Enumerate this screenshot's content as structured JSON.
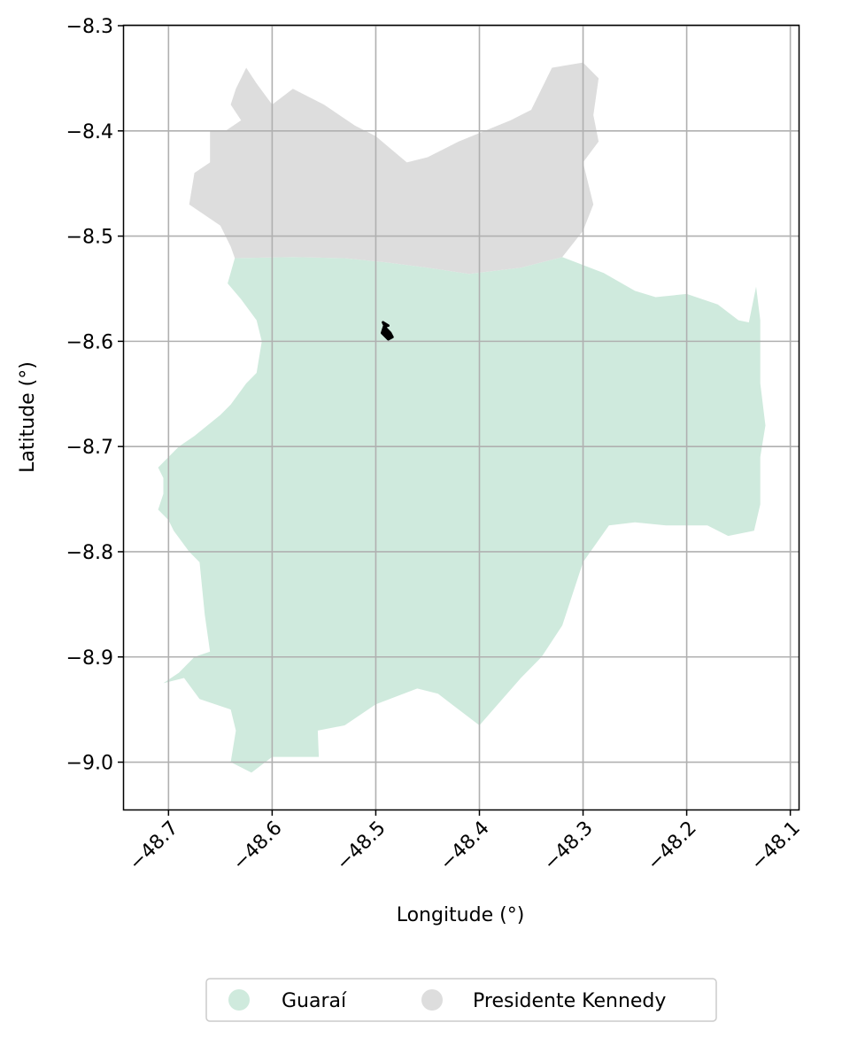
{
  "chart_data": {
    "type": "map",
    "xlabel": "Longitude (°)",
    "ylabel": "Latitude (°)",
    "xlim": [
      -48.743,
      -48.092
    ],
    "ylim": [
      -9.045,
      -8.3
    ],
    "x_ticks": [
      -48.7,
      -48.6,
      -48.5,
      -48.4,
      -48.3,
      -48.2,
      -48.1
    ],
    "x_tick_labels": [
      "−48.7",
      "−48.6",
      "−48.5",
      "−48.4",
      "−48.3",
      "−48.2",
      "−48.1"
    ],
    "y_ticks": [
      -8.3,
      -8.4,
      -8.5,
      -8.6,
      -8.7,
      -8.8,
      -8.9,
      -9.0
    ],
    "y_tick_labels": [
      "−8.3",
      "−8.4",
      "−8.5",
      "−8.6",
      "−8.7",
      "−8.8",
      "−8.9",
      "−9.0"
    ],
    "grid": true,
    "legend_position": "bottom-center",
    "regions": [
      {
        "name": "Guaraí",
        "color": "#cfeadd",
        "outline": [
          [
            -48.636,
            -8.521
          ],
          [
            -48.58,
            -8.52
          ],
          [
            -48.53,
            -8.521
          ],
          [
            -48.49,
            -8.525
          ],
          [
            -48.45,
            -8.53
          ],
          [
            -48.41,
            -8.536
          ],
          [
            -48.36,
            -8.53
          ],
          [
            -48.34,
            -8.525
          ],
          [
            -48.32,
            -8.52
          ],
          [
            -48.28,
            -8.535
          ],
          [
            -48.25,
            -8.552
          ],
          [
            -48.23,
            -8.558
          ],
          [
            -48.2,
            -8.555
          ],
          [
            -48.17,
            -8.565
          ],
          [
            -48.15,
            -8.58
          ],
          [
            -48.14,
            -8.582
          ],
          [
            -48.133,
            -8.548
          ],
          [
            -48.129,
            -8.58
          ],
          [
            -48.129,
            -8.64
          ],
          [
            -48.124,
            -8.68
          ],
          [
            -48.129,
            -8.71
          ],
          [
            -48.129,
            -8.755
          ],
          [
            -48.135,
            -8.78
          ],
          [
            -48.16,
            -8.785
          ],
          [
            -48.18,
            -8.775
          ],
          [
            -48.22,
            -8.775
          ],
          [
            -48.25,
            -8.772
          ],
          [
            -48.275,
            -8.775
          ],
          [
            -48.3,
            -8.81
          ],
          [
            -48.32,
            -8.87
          ],
          [
            -48.34,
            -8.9
          ],
          [
            -48.36,
            -8.92
          ],
          [
            -48.4,
            -8.965
          ],
          [
            -48.44,
            -8.935
          ],
          [
            -48.46,
            -8.93
          ],
          [
            -48.5,
            -8.945
          ],
          [
            -48.53,
            -8.965
          ],
          [
            -48.556,
            -8.97
          ],
          [
            -48.555,
            -8.995
          ],
          [
            -48.575,
            -8.995
          ],
          [
            -48.6,
            -8.995
          ],
          [
            -48.62,
            -9.01
          ],
          [
            -48.64,
            -9.0
          ],
          [
            -48.635,
            -8.97
          ],
          [
            -48.64,
            -8.95
          ],
          [
            -48.67,
            -8.94
          ],
          [
            -48.685,
            -8.92
          ],
          [
            -48.705,
            -8.925
          ],
          [
            -48.69,
            -8.915
          ],
          [
            -48.675,
            -8.9
          ],
          [
            -48.66,
            -8.895
          ],
          [
            -48.665,
            -8.86
          ],
          [
            -48.67,
            -8.81
          ],
          [
            -48.68,
            -8.8
          ],
          [
            -48.695,
            -8.78
          ],
          [
            -48.7,
            -8.77
          ],
          [
            -48.71,
            -8.76
          ],
          [
            -48.705,
            -8.745
          ],
          [
            -48.705,
            -8.73
          ],
          [
            -48.71,
            -8.72
          ],
          [
            -48.69,
            -8.7
          ],
          [
            -48.675,
            -8.69
          ],
          [
            -48.65,
            -8.67
          ],
          [
            -48.64,
            -8.66
          ],
          [
            -48.625,
            -8.64
          ],
          [
            -48.615,
            -8.63
          ],
          [
            -48.61,
            -8.6
          ],
          [
            -48.615,
            -8.58
          ],
          [
            -48.63,
            -8.56
          ],
          [
            -48.643,
            -8.545
          ]
        ]
      },
      {
        "name": "Presidente Kennedy",
        "color": "#dddddd",
        "outline": [
          [
            -48.636,
            -8.521
          ],
          [
            -48.58,
            -8.52
          ],
          [
            -48.53,
            -8.521
          ],
          [
            -48.49,
            -8.525
          ],
          [
            -48.45,
            -8.53
          ],
          [
            -48.41,
            -8.536
          ],
          [
            -48.36,
            -8.53
          ],
          [
            -48.34,
            -8.525
          ],
          [
            -48.32,
            -8.52
          ],
          [
            -48.3,
            -8.495
          ],
          [
            -48.29,
            -8.47
          ],
          [
            -48.3,
            -8.43
          ],
          [
            -48.285,
            -8.41
          ],
          [
            -48.29,
            -8.385
          ],
          [
            -48.285,
            -8.35
          ],
          [
            -48.3,
            -8.335
          ],
          [
            -48.33,
            -8.34
          ],
          [
            -48.35,
            -8.38
          ],
          [
            -48.37,
            -8.39
          ],
          [
            -48.42,
            -8.41
          ],
          [
            -48.45,
            -8.425
          ],
          [
            -48.47,
            -8.43
          ],
          [
            -48.5,
            -8.405
          ],
          [
            -48.52,
            -8.395
          ],
          [
            -48.55,
            -8.375
          ],
          [
            -48.58,
            -8.36
          ],
          [
            -48.6,
            -8.375
          ],
          [
            -48.615,
            -8.355
          ],
          [
            -48.625,
            -8.34
          ],
          [
            -48.635,
            -8.36
          ],
          [
            -48.64,
            -8.375
          ],
          [
            -48.63,
            -8.39
          ],
          [
            -48.645,
            -8.4
          ],
          [
            -48.66,
            -8.4
          ],
          [
            -48.66,
            -8.43
          ],
          [
            -48.675,
            -8.44
          ],
          [
            -48.68,
            -8.47
          ],
          [
            -48.65,
            -8.49
          ],
          [
            -48.64,
            -8.51
          ]
        ]
      }
    ],
    "marker_path": [
      [
        -48.493,
        -8.582
      ],
      [
        -48.49,
        -8.588
      ],
      [
        -48.486,
        -8.592
      ],
      [
        -48.484,
        -8.596
      ],
      [
        -48.488,
        -8.598
      ],
      [
        -48.494,
        -8.592
      ],
      [
        -48.492,
        -8.586
      ],
      [
        -48.488,
        -8.585
      ]
    ],
    "marker_color": "#000000",
    "legend": [
      {
        "label": "Guaraí",
        "color": "#cfeadd"
      },
      {
        "label": "Presidente Kennedy",
        "color": "#dddddd"
      }
    ]
  }
}
